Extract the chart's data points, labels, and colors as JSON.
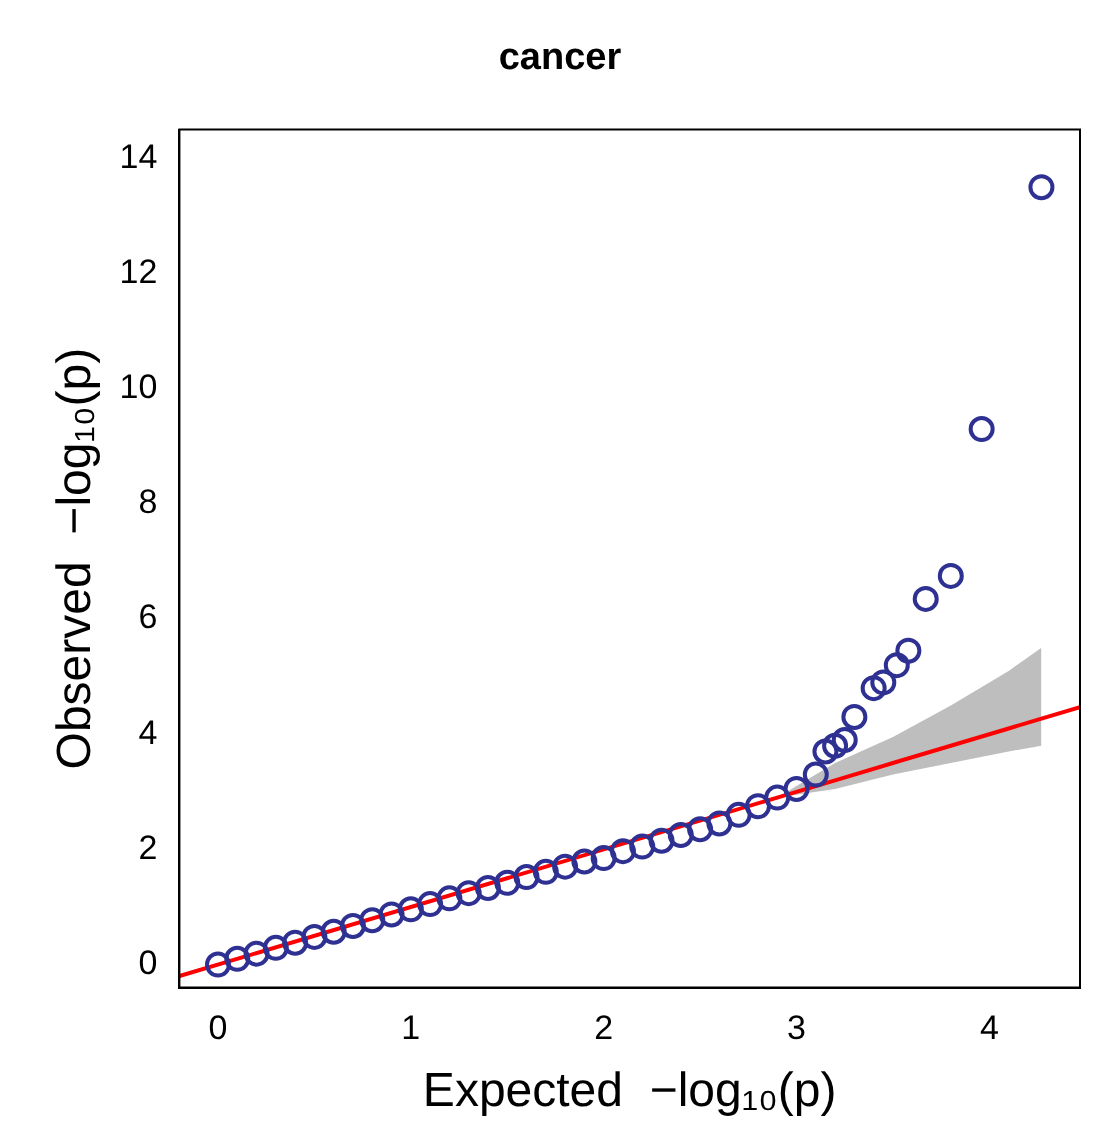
{
  "chart_data": {
    "type": "scatter",
    "title": "cancer",
    "xlabel": "Expected  −log₁₀(p)",
    "ylabel": "Observed  −log₁₀(p)",
    "xlim": [
      -0.2,
      4.47
    ],
    "ylim": [
      -0.4,
      14.5
    ],
    "xticks": [
      0,
      1,
      2,
      3,
      4
    ],
    "yticks": [
      0,
      2,
      4,
      6,
      8,
      10,
      12,
      14
    ],
    "grid": false,
    "legend": false,
    "series": [
      {
        "type": "line",
        "color": "#ff0000",
        "marker": "none",
        "x": [
          -0.2,
          2.9,
          3.2,
          3.5,
          3.8,
          4.1,
          4.27,
          4.47
        ],
        "values": [
          -0.2,
          2.9,
          3.2,
          3.5,
          3.8,
          4.1,
          4.27,
          4.47
        ],
        "lower": [
          null,
          2.9,
          3.05,
          3.3,
          3.5,
          3.7,
          3.8,
          null
        ],
        "upper": [
          null,
          2.9,
          3.5,
          3.95,
          4.5,
          5.1,
          5.5,
          null
        ]
      },
      {
        "type": "scatter",
        "color": "#2e3192",
        "marker": "circle",
        "x": [
          0,
          0.1,
          0.2,
          0.3,
          0.4,
          0.5,
          0.6,
          0.7,
          0.8,
          0.9,
          1.0,
          1.1,
          1.2,
          1.3,
          1.4,
          1.5,
          1.6,
          1.7,
          1.8,
          1.9,
          2.0,
          2.1,
          2.2,
          2.3,
          2.4,
          2.5,
          2.6,
          2.7,
          2.8,
          2.9,
          3.0,
          3.1,
          3.15,
          3.2,
          3.25,
          3.3,
          3.4,
          3.45,
          3.52,
          3.58,
          3.67,
          3.8,
          3.96,
          4.27
        ],
        "values": [
          0,
          0.1,
          0.19,
          0.29,
          0.38,
          0.48,
          0.57,
          0.67,
          0.77,
          0.87,
          0.96,
          1.05,
          1.15,
          1.24,
          1.33,
          1.42,
          1.52,
          1.61,
          1.7,
          1.79,
          1.85,
          1.97,
          2.05,
          2.15,
          2.25,
          2.35,
          2.45,
          2.6,
          2.75,
          2.9,
          3.05,
          3.3,
          3.7,
          3.8,
          3.9,
          4.3,
          4.8,
          4.9,
          5.2,
          5.45,
          6.35,
          6.75,
          9.3,
          13.5
        ]
      }
    ]
  }
}
